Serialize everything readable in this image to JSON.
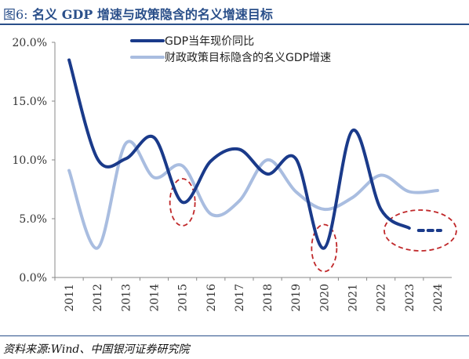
{
  "header": {
    "figure_label": "图6:",
    "title": "名义 GDP 增速与政策隐含的名义增速目标"
  },
  "source": "资料来源:Wind、中国银河证券研究院",
  "colors": {
    "title": "#2a4f8a",
    "gdp": "#1a3a8a",
    "policy": "#a9bde0",
    "highlight": "#c0282a"
  },
  "chart_data": {
    "type": "line",
    "categories": [
      "2011",
      "2012",
      "2013",
      "2014",
      "2015",
      "2016",
      "2017",
      "2018",
      "2019",
      "2020",
      "2021",
      "2022",
      "2023",
      "2024"
    ],
    "y_ticks": [
      "0.0%",
      "5.0%",
      "10.0%",
      "15.0%",
      "20.0%"
    ],
    "ylim": [
      0,
      20
    ],
    "legend_position": "top-center",
    "series": [
      {
        "name": "GDP当年现价同比",
        "values": [
          18.5,
          10.1,
          10.1,
          11.9,
          6.4,
          9.9,
          10.9,
          8.8,
          10.1,
          2.5,
          12.5,
          5.8,
          4.2,
          4.0
        ],
        "dashed_last_segment": true
      },
      {
        "name": "财政政策目标隐含的名义GDP增速",
        "values": [
          9.1,
          2.5,
          11.4,
          8.5,
          9.5,
          5.4,
          6.5,
          10.0,
          7.3,
          5.8,
          6.8,
          8.7,
          7.3,
          7.4
        ]
      }
    ],
    "highlight_circles": [
      "2015",
      "2020",
      "2024"
    ]
  }
}
